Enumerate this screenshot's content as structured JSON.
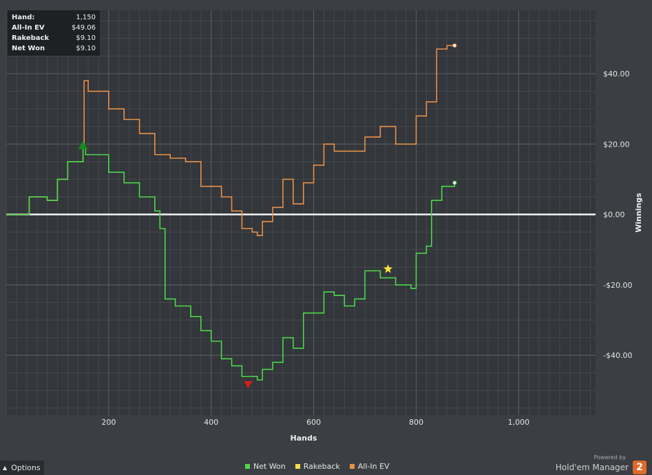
{
  "tooltip": {
    "rows": [
      {
        "label": "Hand:",
        "value": "1,150"
      },
      {
        "label": "All-In EV",
        "value": "$49.06"
      },
      {
        "label": "Rakeback",
        "value": "$9.10"
      },
      {
        "label": "Net Won",
        "value": "$9.10"
      }
    ]
  },
  "legend": [
    {
      "label": "Net Won",
      "color": "#4dd84d"
    },
    {
      "label": "Rakeback",
      "color": "#f0e050"
    },
    {
      "label": "All-In EV",
      "color": "#e8924a"
    }
  ],
  "options_label": "Options",
  "brand": {
    "powered_by": "Powered by",
    "name": "Hold'em Manager",
    "badge": "2"
  },
  "chart_data": {
    "type": "line",
    "xlabel": "Hands",
    "ylabel": "Winnings",
    "xlim": [
      0,
      1150
    ],
    "ylim": [
      -57,
      58
    ],
    "x_ticks": [
      200,
      400,
      600,
      800,
      1000
    ],
    "x_tick_labels": [
      "200",
      "400",
      "600",
      "800",
      "1,000"
    ],
    "y_ticks": [
      40,
      20,
      0,
      -20,
      -40
    ],
    "y_tick_labels": [
      "$40.00",
      "$20.00",
      "$0.00",
      "-$20.00",
      "-$40.00"
    ],
    "grid": true,
    "legend_position": "bottom",
    "series": [
      {
        "name": "All-In EV",
        "color": "#e8924a",
        "points": [
          [
            0,
            0
          ],
          [
            40,
            0
          ],
          [
            45,
            5
          ],
          [
            80,
            4
          ],
          [
            100,
            10
          ],
          [
            120,
            15
          ],
          [
            150,
            19
          ],
          [
            152,
            38
          ],
          [
            160,
            35
          ],
          [
            200,
            30
          ],
          [
            230,
            27
          ],
          [
            260,
            23
          ],
          [
            290,
            17
          ],
          [
            320,
            16
          ],
          [
            350,
            15
          ],
          [
            380,
            8
          ],
          [
            420,
            5
          ],
          [
            440,
            1
          ],
          [
            460,
            -4
          ],
          [
            480,
            -5
          ],
          [
            490,
            -6
          ],
          [
            500,
            -2
          ],
          [
            520,
            2
          ],
          [
            540,
            10
          ],
          [
            560,
            3
          ],
          [
            580,
            9
          ],
          [
            600,
            14
          ],
          [
            620,
            20
          ],
          [
            640,
            18
          ],
          [
            700,
            22
          ],
          [
            730,
            25
          ],
          [
            760,
            20
          ],
          [
            790,
            20
          ],
          [
            800,
            28
          ],
          [
            820,
            32
          ],
          [
            840,
            47
          ],
          [
            860,
            48
          ],
          [
            875,
            48
          ]
        ]
      },
      {
        "name": "Net Won",
        "color": "#4dd84d",
        "points": [
          [
            0,
            0
          ],
          [
            40,
            0
          ],
          [
            45,
            5
          ],
          [
            80,
            4
          ],
          [
            100,
            10
          ],
          [
            120,
            15
          ],
          [
            150,
            19
          ],
          [
            155,
            17
          ],
          [
            200,
            12
          ],
          [
            230,
            9
          ],
          [
            260,
            5
          ],
          [
            290,
            1
          ],
          [
            300,
            -4
          ],
          [
            310,
            -24
          ],
          [
            330,
            -26
          ],
          [
            360,
            -29
          ],
          [
            380,
            -33
          ],
          [
            400,
            -36
          ],
          [
            420,
            -41
          ],
          [
            440,
            -43
          ],
          [
            460,
            -46
          ],
          [
            490,
            -47
          ],
          [
            500,
            -44
          ],
          [
            520,
            -42
          ],
          [
            540,
            -35
          ],
          [
            560,
            -38
          ],
          [
            580,
            -28
          ],
          [
            600,
            -28
          ],
          [
            620,
            -22
          ],
          [
            640,
            -23
          ],
          [
            660,
            -26
          ],
          [
            680,
            -24
          ],
          [
            700,
            -16
          ],
          [
            730,
            -18
          ],
          [
            760,
            -20
          ],
          [
            790,
            -21
          ],
          [
            800,
            -11
          ],
          [
            820,
            -9
          ],
          [
            830,
            4
          ],
          [
            850,
            8
          ],
          [
            875,
            9
          ]
        ]
      }
    ],
    "markers": [
      {
        "kind": "max-triangle",
        "x": 150,
        "y": 19.5,
        "color": "#1a8a1a"
      },
      {
        "kind": "min-triangle",
        "x": 472,
        "y": -48.5,
        "color": "#d61e1e"
      },
      {
        "kind": "star",
        "x": 745,
        "y": -15.5,
        "color": "#f6e23a"
      }
    ]
  }
}
